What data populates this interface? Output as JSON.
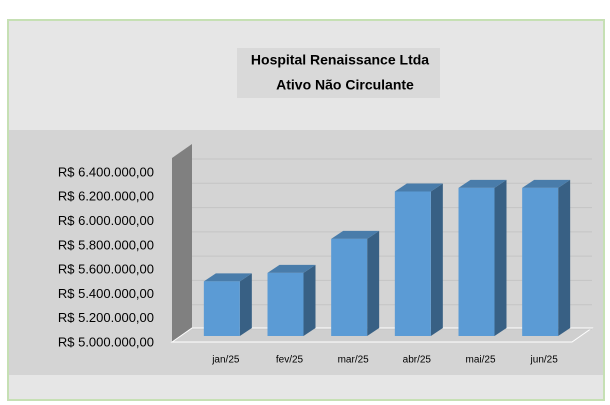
{
  "chart_data": {
    "type": "bar",
    "title": "Hospital Renaissance Ltda",
    "subtitle": "Ativo Não Circulante",
    "categories": [
      "jan/25",
      "fev/25",
      "mar/25",
      "abr/25",
      "mai/25",
      "jun/25"
    ],
    "values": [
      5450000,
      5520000,
      5800000,
      6190000,
      6220000,
      6220000
    ],
    "color": "#5b9bd5",
    "ylim": [
      5000000,
      6400000
    ],
    "yticks": [
      {
        "value": 5000000,
        "label": "R$ 5.000.000,00"
      },
      {
        "value": 5200000,
        "label": "R$ 5.200.000,00"
      },
      {
        "value": 5400000,
        "label": "R$ 5.400.000,00"
      },
      {
        "value": 5600000,
        "label": "R$ 5.600.000,00"
      },
      {
        "value": 5800000,
        "label": "R$ 5.800.000,00"
      },
      {
        "value": 6000000,
        "label": "R$ 6.000.000,00"
      },
      {
        "value": 6200000,
        "label": "R$ 6.200.000,00"
      },
      {
        "value": 6400000,
        "label": "R$ 6.400.000,00"
      }
    ],
    "grid": true
  }
}
